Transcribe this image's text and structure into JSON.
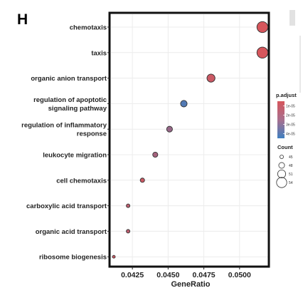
{
  "panel_label": "H",
  "chart_data": {
    "type": "scatter",
    "title": "",
    "xlabel": "GeneRatio",
    "ylabel": "",
    "xlim": [
      0.041,
      0.052
    ],
    "xticks": [
      0.0425,
      0.045,
      0.0475,
      0.05
    ],
    "xtick_labels": [
      "0.0425",
      "0.0450",
      "0.0475",
      "0.0500"
    ],
    "grid": true,
    "legend_position": "right",
    "points": [
      {
        "term": "chemotaxis",
        "term_lines": [
          "chemotaxis"
        ],
        "gene_ratio": 0.0516,
        "count": 55,
        "p_adjust": 5e-06
      },
      {
        "term": "taxis",
        "term_lines": [
          "taxis"
        ],
        "gene_ratio": 0.0516,
        "count": 55,
        "p_adjust": 5e-06
      },
      {
        "term": "organic anion transport",
        "term_lines": [
          "organic anion transport"
        ],
        "gene_ratio": 0.048,
        "count": 51,
        "p_adjust": 8e-06
      },
      {
        "term": "regulation of apoptotic signaling pathway",
        "term_lines": [
          "regulation of apoptotic",
          "signaling pathway"
        ],
        "gene_ratio": 0.0461,
        "count": 49,
        "p_adjust": 4e-05
      },
      {
        "term": "regulation of inflammatory response",
        "term_lines": [
          "regulation of inflammatory",
          "response"
        ],
        "gene_ratio": 0.0451,
        "count": 48,
        "p_adjust": 2.2e-05
      },
      {
        "term": "leukocyte migration",
        "term_lines": [
          "leukocyte migration"
        ],
        "gene_ratio": 0.0441,
        "count": 47,
        "p_adjust": 1.8e-05
      },
      {
        "term": "cell chemotaxis",
        "term_lines": [
          "cell chemotaxis"
        ],
        "gene_ratio": 0.0432,
        "count": 46,
        "p_adjust": 8e-06
      },
      {
        "term": "carboxylic acid transport",
        "term_lines": [
          "carboxylic acid transport"
        ],
        "gene_ratio": 0.0422,
        "count": 45,
        "p_adjust": 1.2e-05
      },
      {
        "term": "organic acid transport",
        "term_lines": [
          "organic acid transport"
        ],
        "gene_ratio": 0.0422,
        "count": 45,
        "p_adjust": 1.2e-05
      },
      {
        "term": "ribosome biogenesis",
        "term_lines": [
          "ribosome biogenesis"
        ],
        "gene_ratio": 0.0412,
        "count": 44,
        "p_adjust": 8e-06
      }
    ],
    "color_legend": {
      "title": "p.adjust",
      "labels": [
        "1e-05",
        "2e-05",
        "3e-05",
        "4e-05"
      ],
      "values": [
        1e-05,
        2e-05,
        3e-05,
        4e-05
      ],
      "range": [
        5e-06,
        4.5e-05
      ],
      "low_color": "#d6565c",
      "high_color": "#3f7fc1"
    },
    "size_legend": {
      "title": "Count",
      "labels": [
        "45",
        "48",
        "51",
        "54"
      ],
      "values": [
        45,
        48,
        51,
        54
      ]
    }
  }
}
